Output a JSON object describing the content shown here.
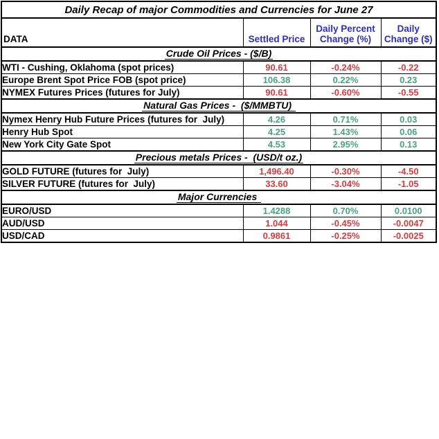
{
  "title": "Daily Recap of major Commodities and Currencies for June 27",
  "header": {
    "data": "DATA",
    "settled": "Settled Price",
    "percent_line1": "Daily Percent",
    "percent_line2": "Change (%)",
    "change_line1": "Daily",
    "change_line2": "Change ($)"
  },
  "colors": {
    "up": "#48a37d",
    "down": "#d93a3c",
    "headerblue": "#2e2eb8"
  },
  "sections": [
    {
      "heading": "Crude Oil Prices - ($/B)",
      "rows": [
        {
          "label": "WTI - Cushing, Oklahoma (spot prices)",
          "settled": "90.61",
          "percent": "-0.24%",
          "change": "-0.22",
          "trend": "down"
        },
        {
          "label": "Europe Brent Spot Price FOB (spot price)",
          "settled": "106.38",
          "percent": "0.22%",
          "change": "0.23",
          "trend": "up"
        },
        {
          "label": "NYMEX Futures Prices (futures for July)",
          "settled": "90.61",
          "percent": "-0.60%",
          "change": "-0.55",
          "trend": "down"
        }
      ]
    },
    {
      "heading": "Natural Gas Prices -  ($/MMBTU) ",
      "rows": [
        {
          "label": "Nymex Henry Hub Future Prices (futures for  July)",
          "settled": "4.26",
          "percent": "0.71%",
          "change": "0.03",
          "trend": "up"
        },
        {
          "label": "Henry Hub Spot",
          "settled": "4.25",
          "percent": "1.43%",
          "change": "0.06",
          "trend": "up"
        },
        {
          "label": "New York City Gate Spot",
          "settled": "4.53",
          "percent": "2.95%",
          "change": "0.13",
          "trend": "up"
        }
      ]
    },
    {
      "heading": "Precious metals Prices -  (USD/t oz.)",
      "rows": [
        {
          "label": "GOLD FUTURE (futures for  July)",
          "settled": "1,496.40",
          "percent": "-0.30%",
          "change": "-4.50",
          "trend": "down"
        },
        {
          "label": "SILVER FUTURE (futures for  July)",
          "settled": "33.60",
          "percent": "-3.04%",
          "change": "-1.05",
          "trend": "down"
        }
      ]
    },
    {
      "heading": "Major Currencies ",
      "rows": [
        {
          "label": "EURO/USD",
          "settled": "1.4288",
          "percent": "0.70%",
          "change": "0.0100",
          "trend": "up"
        },
        {
          "label": "AUD/USD",
          "settled": "1.044",
          "percent": "-0.45%",
          "change": "-0.0047",
          "trend": "down"
        },
        {
          "label": "USD/CAD",
          "settled": "0.9861",
          "percent": "-0.25%",
          "change": "-0.0025",
          "trend": "down"
        }
      ]
    }
  ]
}
